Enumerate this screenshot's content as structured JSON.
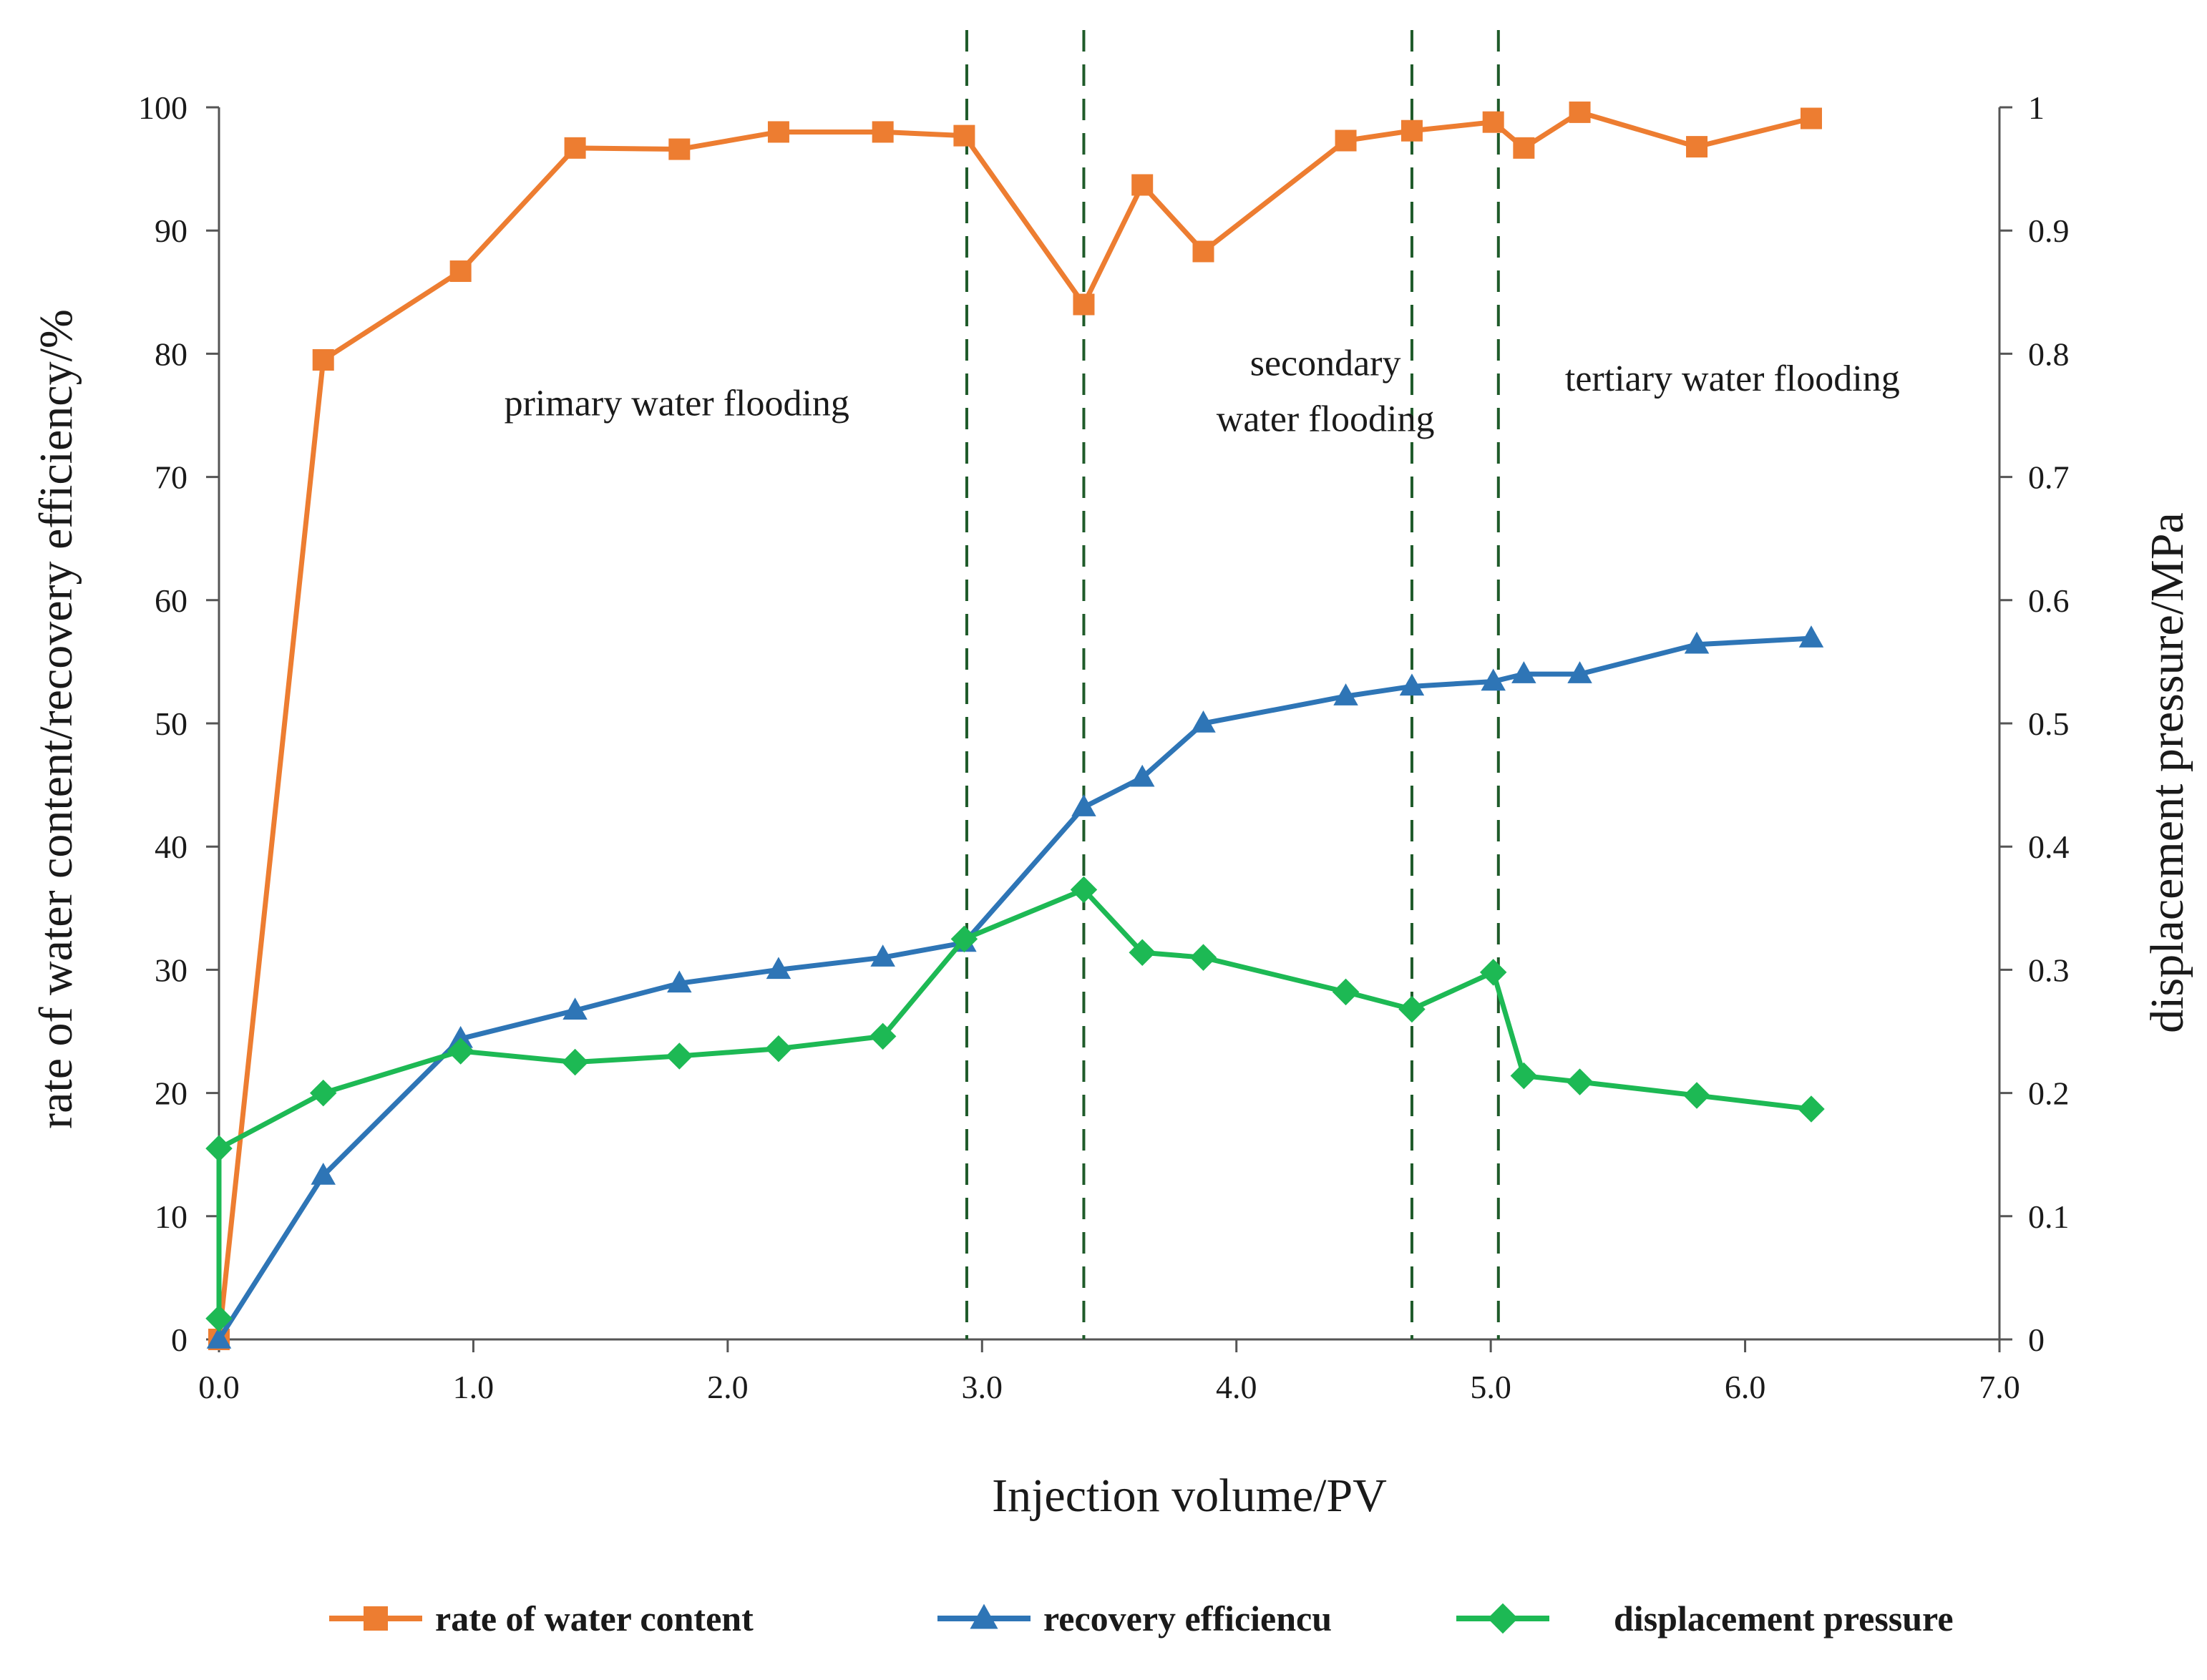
{
  "chart_data": {
    "type": "line",
    "title": "",
    "xlabel": "Injection volume/PV",
    "ylabel": "rate of water content/recovery efficiency/%",
    "y2label": "displacement pressure/MPa",
    "xlim": [
      0,
      7
    ],
    "ylim": [
      0,
      100
    ],
    "y2lim": [
      0,
      1
    ],
    "x_ticks": [
      "0.0",
      "1.0",
      "2.0",
      "3.0",
      "4.0",
      "5.0",
      "6.0",
      "7.0"
    ],
    "y_ticks": [
      "0",
      "10",
      "20",
      "30",
      "40",
      "50",
      "60",
      "70",
      "80",
      "90",
      "100"
    ],
    "y2_ticks": [
      "0",
      "0.1",
      "0.2",
      "0.3",
      "0.4",
      "0.5",
      "0.6",
      "0.7",
      "0.8",
      "0.9",
      "1"
    ],
    "grid": false,
    "legend_position": "bottom",
    "vlines": [
      2.94,
      3.4,
      4.69,
      5.03
    ],
    "regions": [
      {
        "lines": [
          "primary water flooding"
        ],
        "x": 1.8,
        "y": 75
      },
      {
        "lines": [
          "secondary",
          "water flooding"
        ],
        "x": 4.35,
        "y": 76
      },
      {
        "lines": [
          "tertiary water flooding"
        ],
        "x": 5.95,
        "y": 77
      }
    ],
    "series": [
      {
        "name": "rate of water content",
        "axis": "left",
        "color": "#ED7D31",
        "marker": "square",
        "x": [
          0.0,
          0.41,
          0.95,
          1.4,
          1.81,
          2.2,
          2.61,
          2.93,
          3.4,
          3.63,
          3.87,
          4.43,
          4.69,
          5.01,
          5.13,
          5.35,
          5.81,
          6.26
        ],
        "y": [
          0.0,
          79.5,
          86.7,
          96.7,
          96.6,
          98.0,
          98.0,
          97.7,
          84.0,
          93.7,
          88.3,
          97.3,
          98.1,
          98.8,
          96.7,
          99.6,
          96.8,
          99.1
        ]
      },
      {
        "name": "recovery efficiencu",
        "axis": "left",
        "color": "#2E75B6",
        "marker": "triangle",
        "x": [
          0.0,
          0.41,
          0.95,
          1.4,
          1.81,
          2.2,
          2.61,
          2.93,
          3.4,
          3.63,
          3.87,
          4.43,
          4.69,
          5.01,
          5.13,
          5.35,
          5.81,
          6.26
        ],
        "y": [
          0.0,
          13.3,
          24.4,
          26.7,
          28.9,
          30.0,
          31.0,
          32.2,
          43.2,
          45.6,
          50.0,
          52.2,
          53.0,
          53.4,
          54.0,
          54.0,
          56.4,
          56.9
        ]
      },
      {
        "name": "displacement pressure",
        "axis": "right",
        "color": "#1DB954",
        "marker": "diamond",
        "x": [
          0.0,
          0.0,
          0.41,
          0.95,
          1.4,
          1.81,
          2.2,
          2.61,
          2.93,
          3.4,
          3.63,
          3.87,
          4.43,
          4.69,
          5.01,
          5.13,
          5.35,
          5.81,
          6.26
        ],
        "y": [
          0.017,
          0.155,
          0.2,
          0.234,
          0.225,
          0.23,
          0.236,
          0.246,
          0.325,
          0.365,
          0.314,
          0.31,
          0.282,
          0.268,
          0.298,
          0.214,
          0.209,
          0.198,
          0.187
        ]
      }
    ]
  }
}
